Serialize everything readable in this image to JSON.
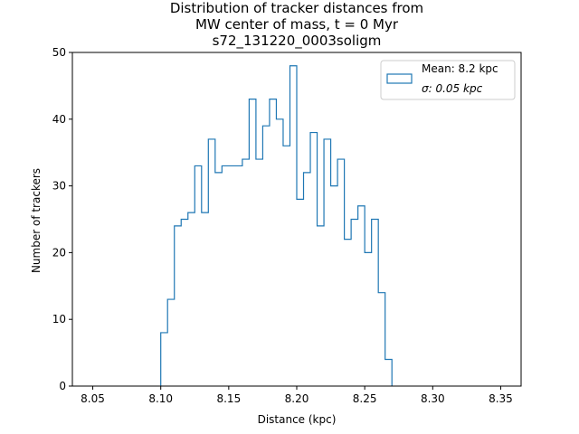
{
  "chart_data": {
    "type": "histogram",
    "title_lines": [
      "Distribution of tracker distances from",
      "MW center of mass, t = 0 Myr",
      "s72_131220_0003soligm"
    ],
    "xlabel": "Distance (kpc)",
    "ylabel": "Number of trackers",
    "xlim": [
      8.035,
      8.365
    ],
    "ylim": [
      0,
      50
    ],
    "xticks": [
      8.05,
      8.1,
      8.15,
      8.2,
      8.25,
      8.3,
      8.35
    ],
    "xtick_labels": [
      "8.05",
      "8.10",
      "8.15",
      "8.20",
      "8.25",
      "8.30",
      "8.35"
    ],
    "yticks": [
      0,
      10,
      20,
      30,
      40,
      50
    ],
    "ytick_labels": [
      "0",
      "10",
      "20",
      "30",
      "40",
      "50"
    ],
    "bin_start": 8.1,
    "bin_width": 0.005,
    "counts": [
      8,
      13,
      24,
      25,
      26,
      33,
      26,
      37,
      32,
      33,
      33,
      33,
      34,
      43,
      34,
      39,
      43,
      40,
      36,
      48,
      28,
      32,
      38,
      24,
      37,
      30,
      34,
      22,
      25,
      27,
      20,
      25,
      14,
      4
    ],
    "color": "#1f77b4",
    "legend": {
      "position": "top-right",
      "entries": [
        "Mean: 8.2 kpc",
        "σ: 0.05 kpc"
      ]
    }
  }
}
